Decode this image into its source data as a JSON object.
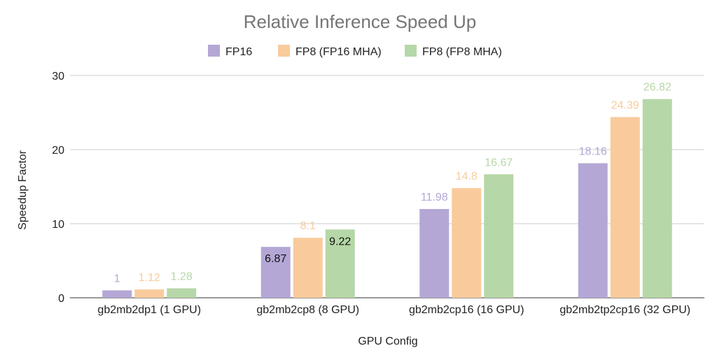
{
  "chart_data": {
    "type": "bar",
    "title": "Relative Inference Speed Up",
    "xlabel": "GPU Config",
    "ylabel": "Speedup Factor",
    "ylim": [
      0,
      30
    ],
    "yticks": [
      0,
      10,
      20,
      30
    ],
    "grid": true,
    "legend_position": "top",
    "categories": [
      "gb2mb2dp1 (1 GPU)",
      "gb2mb2cp8 (8 GPU)",
      "gb2mb2cp16 (16 GPU)",
      "gb2mb2tp2cp16 (32 GPU)"
    ],
    "series": [
      {
        "name": "FP16",
        "color": "#b4a7d6",
        "values": [
          1,
          6.87,
          11.98,
          18.16
        ],
        "labels": [
          "1",
          "6.87",
          "11.98",
          "18.16"
        ]
      },
      {
        "name": "FP8 (FP16 MHA)",
        "color": "#f9cb9c",
        "values": [
          1.12,
          8.1,
          14.8,
          24.39
        ],
        "labels": [
          "1.12",
          "8.1",
          "14.8",
          "24.39"
        ]
      },
      {
        "name": "FP8 (FP8 MHA)",
        "color": "#b6d7a8",
        "values": [
          1.28,
          9.22,
          16.67,
          26.82
        ],
        "labels": [
          "1.28",
          "9.22",
          "16.67",
          "26.82"
        ]
      }
    ]
  }
}
